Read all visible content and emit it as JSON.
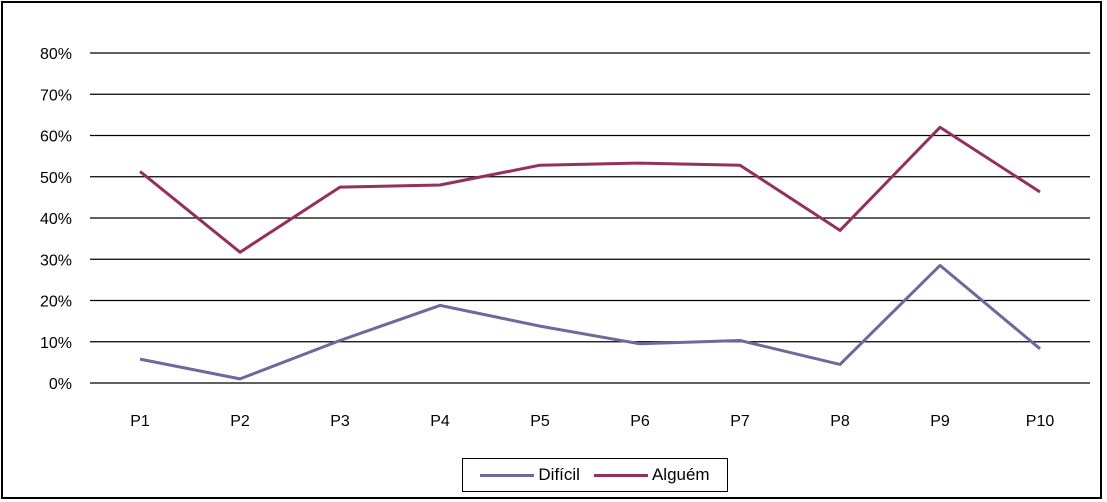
{
  "chart_data": {
    "type": "line",
    "categories": [
      "P1",
      "P2",
      "P3",
      "P4",
      "P5",
      "P6",
      "P7",
      "P8",
      "P9",
      "P10"
    ],
    "ylim": [
      0,
      80
    ],
    "yticks": [
      "0%",
      "10%",
      "20%",
      "30%",
      "40%",
      "50%",
      "60%",
      "70%",
      "80%"
    ],
    "grid": true,
    "legend_position": "bottom",
    "series": [
      {
        "name": "Difícil",
        "color": "#6A6A9C",
        "values": [
          5.8,
          1,
          10.3,
          18.8,
          13.8,
          9.5,
          10.3,
          4.5,
          28.5,
          8.3
        ]
      },
      {
        "name": "Alguém",
        "color": "#93305E",
        "values": [
          51.3,
          31.7,
          47.5,
          48,
          52.8,
          53.3,
          52.8,
          37,
          62,
          46.3
        ]
      }
    ]
  }
}
